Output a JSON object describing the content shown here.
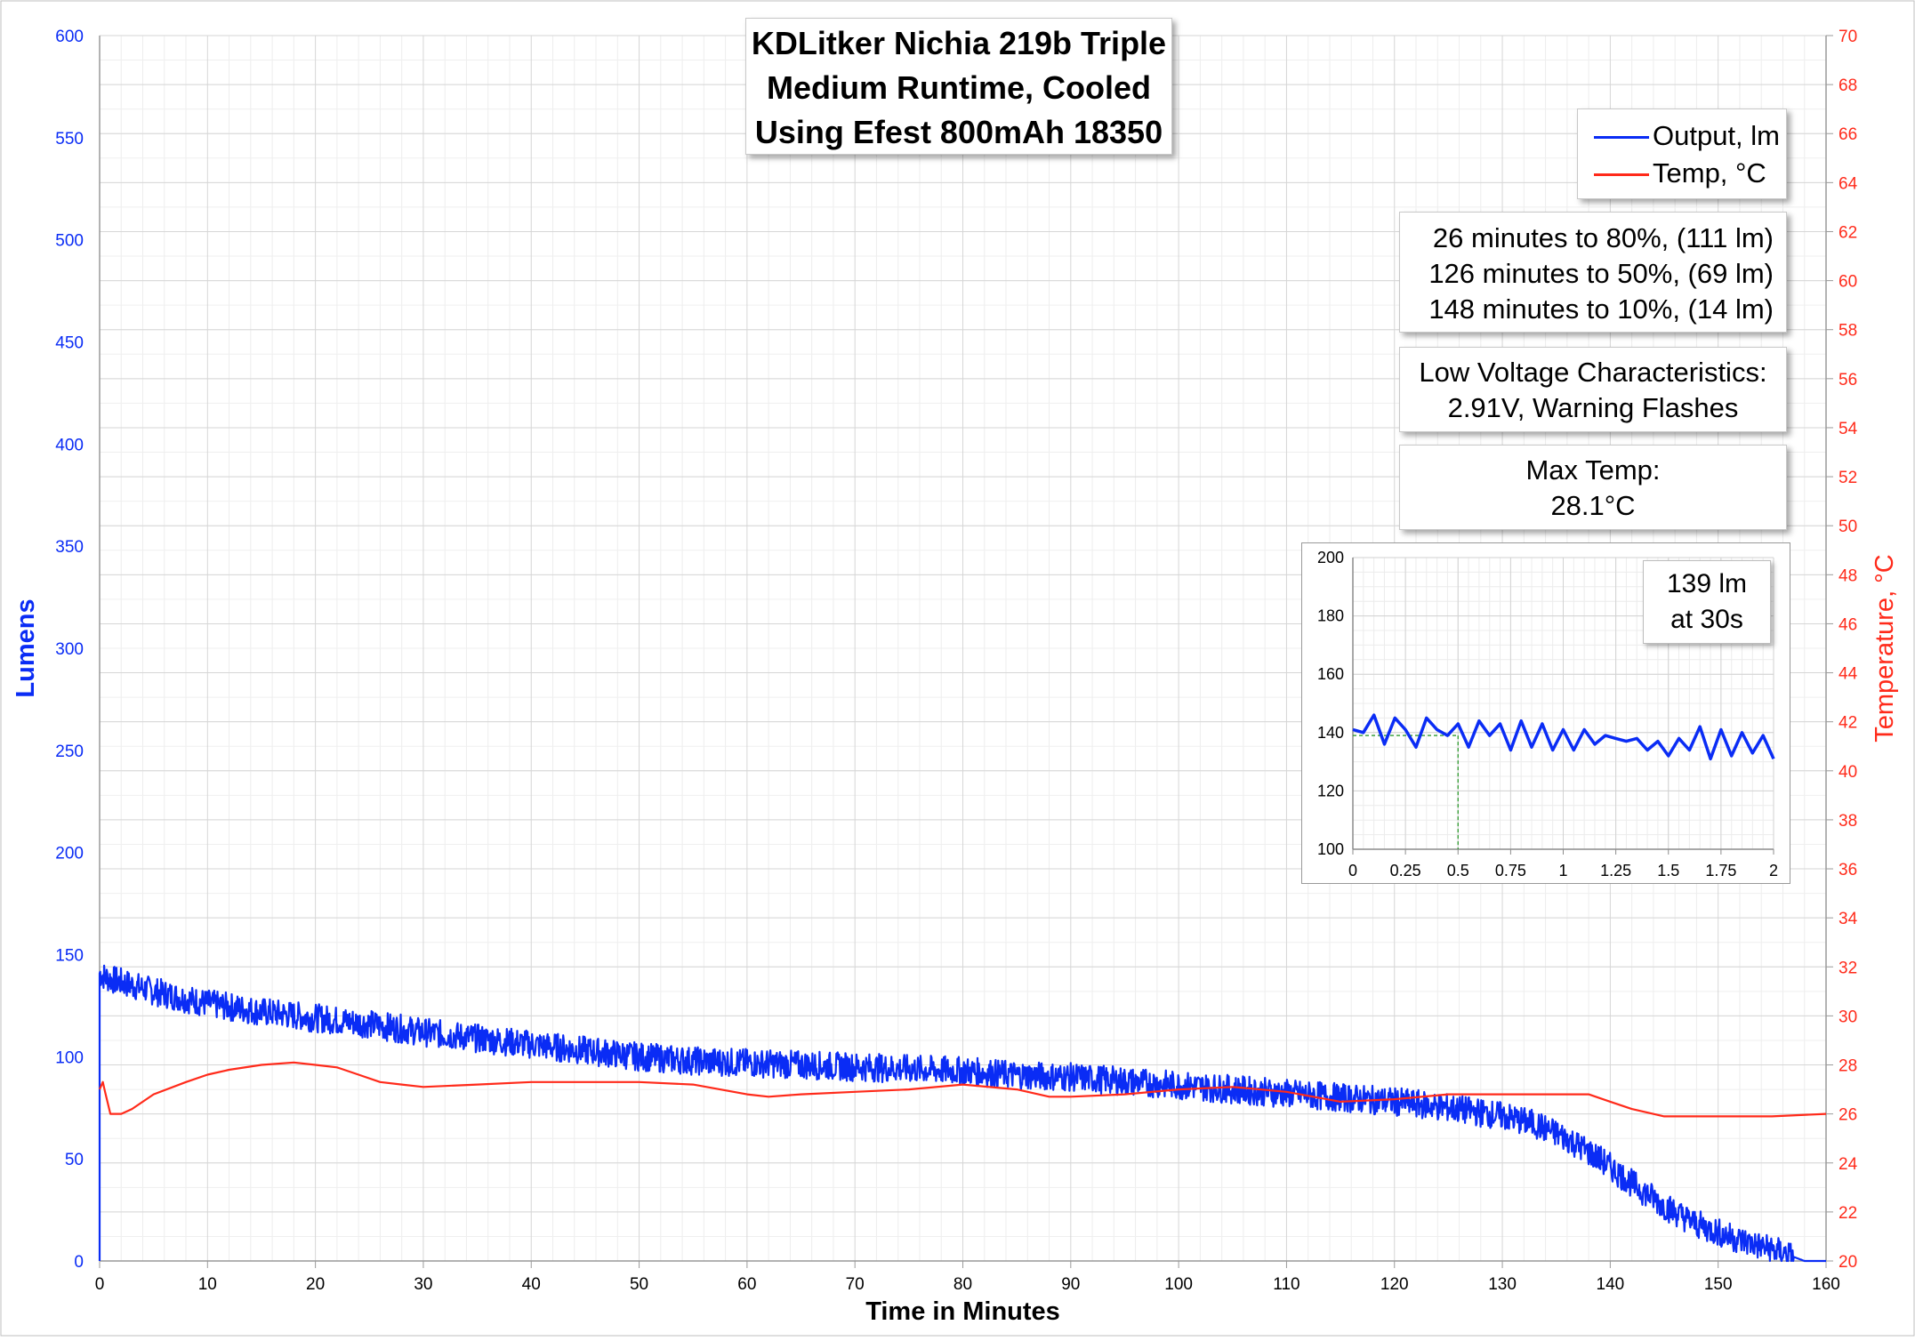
{
  "chart_data": {
    "type": "line",
    "title_lines": [
      "KDLitker Nichia 219b Triple",
      "Medium Runtime, Cooled",
      "Using Efest 800mAh 18350"
    ],
    "xlabel": "Time in Minutes",
    "ylabel": "Lumens",
    "y2label": "Temperature, °C",
    "xlim": [
      0,
      160
    ],
    "ylim": [
      0,
      600
    ],
    "y2lim": [
      20,
      70
    ],
    "x_ticks": [
      0,
      10,
      20,
      30,
      40,
      50,
      60,
      70,
      80,
      90,
      100,
      110,
      120,
      130,
      140,
      150,
      160
    ],
    "y_ticks": [
      0,
      50,
      100,
      150,
      200,
      250,
      300,
      350,
      400,
      450,
      500,
      550,
      600
    ],
    "y2_ticks": [
      20,
      22,
      24,
      26,
      28,
      30,
      32,
      34,
      36,
      38,
      40,
      42,
      44,
      46,
      48,
      50,
      52,
      54,
      56,
      58,
      60,
      62,
      64,
      66,
      68,
      70
    ],
    "grid": true,
    "legend_position": "top-right",
    "series": [
      {
        "name": "Output, lm",
        "axis": "left",
        "color": "#0a2cf5",
        "noise_band": 7,
        "x": [
          0,
          0.5,
          1,
          5,
          10,
          15,
          20,
          25,
          30,
          35,
          40,
          45,
          50,
          55,
          60,
          65,
          70,
          75,
          80,
          85,
          90,
          95,
          100,
          105,
          110,
          115,
          120,
          125,
          130,
          133,
          136,
          139,
          142,
          145,
          148,
          151,
          154,
          156,
          157.5,
          158,
          160
        ],
        "y": [
          141,
          139,
          138,
          132,
          126,
          122,
          119,
          116,
          112,
          109,
          106,
          103,
          100,
          98,
          97,
          96,
          95,
          94,
          93,
          91,
          90,
          88,
          86,
          84,
          82,
          80,
          78,
          75,
          71,
          67,
          60,
          50,
          38,
          27,
          18,
          12,
          7,
          4,
          1,
          0,
          0
        ]
      },
      {
        "name": "Temp, °C",
        "axis": "right",
        "color": "#ff2a1a",
        "x": [
          0,
          0.3,
          0.5,
          1,
          2,
          3,
          5,
          8,
          10,
          12,
          15,
          18,
          20,
          22,
          24,
          26,
          28,
          30,
          35,
          40,
          45,
          50,
          55,
          60,
          62,
          65,
          70,
          75,
          80,
          85,
          88,
          90,
          95,
          100,
          105,
          110,
          115,
          120,
          125,
          130,
          135,
          138,
          140,
          142,
          145,
          150,
          155,
          160
        ],
        "y": [
          27.0,
          27.3,
          26.9,
          26.0,
          26.0,
          26.2,
          26.8,
          27.3,
          27.6,
          27.8,
          28.0,
          28.1,
          28.0,
          27.9,
          27.6,
          27.3,
          27.2,
          27.1,
          27.2,
          27.3,
          27.3,
          27.3,
          27.2,
          26.8,
          26.7,
          26.8,
          26.9,
          27.0,
          27.2,
          27.0,
          26.7,
          26.7,
          26.8,
          27.0,
          27.1,
          26.9,
          26.5,
          26.6,
          26.8,
          26.8,
          26.8,
          26.8,
          26.5,
          26.2,
          25.9,
          25.9,
          25.9,
          26.0
        ]
      }
    ],
    "annotations": {
      "runtime": [
        "26 minutes to 80%, (111 lm)",
        "126 minutes to 50%, (69 lm)",
        "148 minutes to 10%, (14 lm)"
      ],
      "low_voltage": [
        "Low Voltage Characteristics:",
        "2.91V, Warning Flashes"
      ],
      "max_temp": [
        "Max Temp:",
        "28.1°C"
      ]
    },
    "inset": {
      "type": "line",
      "xlim": [
        0,
        2
      ],
      "ylim": [
        100,
        200
      ],
      "x_ticks": [
        0,
        0.25,
        0.5,
        0.75,
        1,
        1.25,
        1.5,
        1.75,
        2
      ],
      "x_tick_labels": [
        "0",
        "0.25",
        "0.5",
        "0.75",
        "1",
        "1.25",
        "1.5",
        "1.75",
        "2"
      ],
      "y_ticks": [
        100,
        120,
        140,
        160,
        180,
        200
      ],
      "label_lines": [
        "139 lm",
        "at 30s"
      ],
      "marker": {
        "x": 0.5,
        "y": 139
      },
      "series": [
        {
          "name": "Output, lm",
          "color": "#0a2cf5",
          "x": [
            0,
            0.05,
            0.1,
            0.15,
            0.2,
            0.25,
            0.3,
            0.35,
            0.4,
            0.45,
            0.5,
            0.55,
            0.6,
            0.65,
            0.7,
            0.75,
            0.8,
            0.85,
            0.9,
            0.95,
            1.0,
            1.05,
            1.1,
            1.15,
            1.2,
            1.25,
            1.3,
            1.35,
            1.4,
            1.45,
            1.5,
            1.55,
            1.6,
            1.65,
            1.7,
            1.75,
            1.8,
            1.85,
            1.9,
            1.95,
            2.0
          ],
          "y": [
            141,
            140,
            146,
            136,
            145,
            141,
            135,
            145,
            141,
            139,
            143,
            135,
            144,
            139,
            143,
            134,
            144,
            135,
            143,
            134,
            141,
            134,
            141,
            136,
            139,
            138,
            137,
            138,
            134,
            137,
            132,
            138,
            134,
            142,
            131,
            141,
            132,
            140,
            133,
            139,
            131
          ]
        }
      ]
    }
  }
}
